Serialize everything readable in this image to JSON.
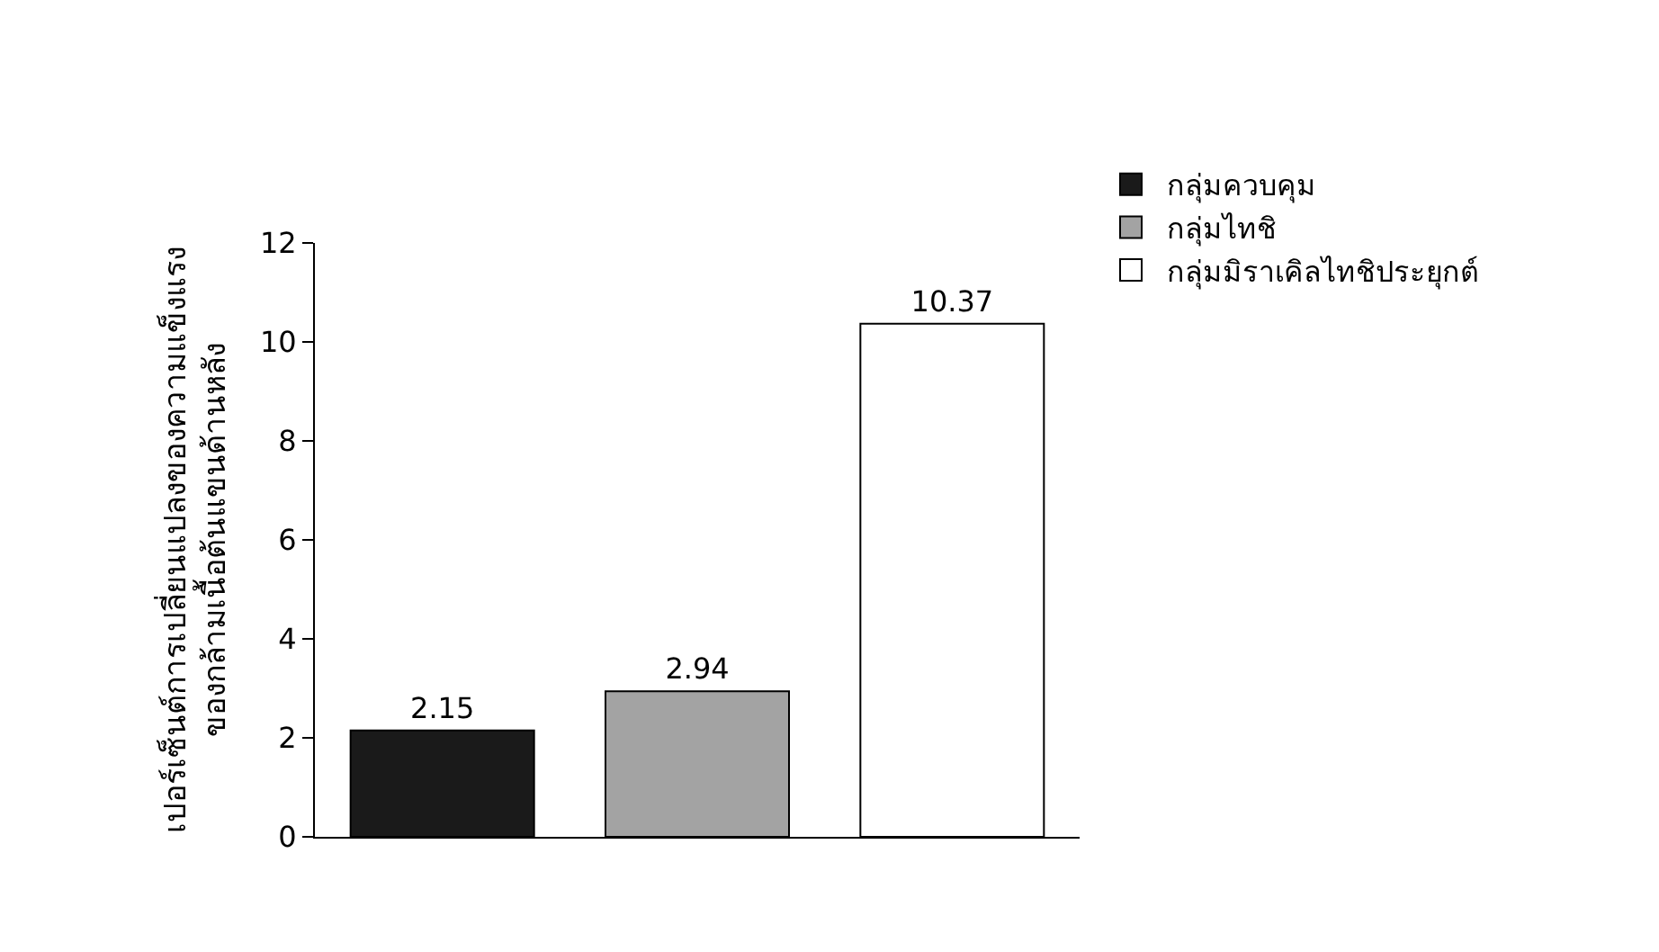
{
  "chart_data": {
    "type": "bar",
    "ylabel": "เปอร์เซ็นต์การเปลี่ยนแปลงของความแข็งแรง\nของกล้ามเนื้อต้นแขนด้านหลัง",
    "categories": [
      null,
      null,
      null
    ],
    "series": [
      {
        "name": "กลุ่มควบคุม",
        "color": "#1a1a1a",
        "values": [
          2.15,
          null,
          null
        ]
      },
      {
        "name": "กลุ่มไทชิ",
        "color": "#a3a3a3",
        "values": [
          null,
          2.94,
          null
        ]
      },
      {
        "name": "กลุ่มมิราเคิลไทชิประยุกต์",
        "color": "#ffffff",
        "values": [
          null,
          null,
          10.37
        ]
      }
    ],
    "ylim": [
      0,
      12
    ],
    "yticks": [
      0,
      2,
      4,
      6,
      8,
      10,
      12
    ],
    "data_labels": true,
    "legend": "top right",
    "tick_labels": "y"
  }
}
